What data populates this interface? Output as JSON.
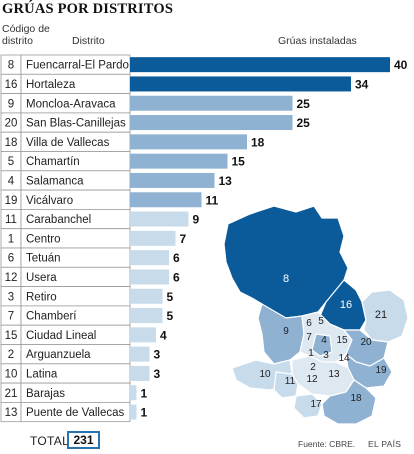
{
  "title": "GRÚAS POR DISTRITOS",
  "headers": {
    "code": "Código de distrito",
    "district": "Distrito",
    "bars": "Grúas instaladas"
  },
  "colors": {
    "dark": "#0b5b9a",
    "mid": "#8fb2d2",
    "light": "#c7dbeb",
    "map_other": "#dde8f1",
    "total_border": "#2a73ad"
  },
  "chart_data": {
    "type": "bar",
    "orientation": "horizontal",
    "xlabel": "Grúas instaladas",
    "xlim": [
      0,
      40
    ],
    "grid": false,
    "rows": [
      {
        "code": "8",
        "district": "Fuencarral-El Pardo",
        "value": 40,
        "shade": "dark"
      },
      {
        "code": "16",
        "district": "Hortaleza",
        "value": 34,
        "shade": "dark"
      },
      {
        "code": "9",
        "district": "Moncloa-Aravaca",
        "value": 25,
        "shade": "mid"
      },
      {
        "code": "20",
        "district": "San Blas-Canillejas",
        "value": 25,
        "shade": "mid"
      },
      {
        "code": "18",
        "district": "Villa de Vallecas",
        "value": 18,
        "shade": "mid"
      },
      {
        "code": "5",
        "district": "Chamartín",
        "value": 15,
        "shade": "mid"
      },
      {
        "code": "4",
        "district": "Salamanca",
        "value": 13,
        "shade": "mid"
      },
      {
        "code": "19",
        "district": "Vicálvaro",
        "value": 11,
        "shade": "mid"
      },
      {
        "code": "11",
        "district": "Carabanchel",
        "value": 9,
        "shade": "light"
      },
      {
        "code": "1",
        "district": "Centro",
        "value": 7,
        "shade": "light"
      },
      {
        "code": "6",
        "district": "Tetuán",
        "value": 6,
        "shade": "light"
      },
      {
        "code": "12",
        "district": "Usera",
        "value": 6,
        "shade": "light"
      },
      {
        "code": "3",
        "district": "Retiro",
        "value": 5,
        "shade": "light"
      },
      {
        "code": "7",
        "district": "Chamberí",
        "value": 5,
        "shade": "light"
      },
      {
        "code": "15",
        "district": "Ciudad Lineal",
        "value": 4,
        "shade": "light"
      },
      {
        "code": "2",
        "district": "Arguanzuela",
        "value": 3,
        "shade": "light"
      },
      {
        "code": "10",
        "district": "Latina",
        "value": 3,
        "shade": "light"
      },
      {
        "code": "21",
        "district": "Barajas",
        "value": 1,
        "shade": "light"
      },
      {
        "code": "13",
        "district": "Puente de Vallecas",
        "value": 1,
        "shade": "light"
      }
    ]
  },
  "map_labels": [
    "8",
    "16",
    "21",
    "9",
    "6",
    "5",
    "7",
    "4",
    "1",
    "15",
    "20",
    "3",
    "14",
    "2",
    "10",
    "11",
    "12",
    "13",
    "19",
    "17",
    "18"
  ],
  "total": {
    "label": "TOTAL",
    "value": "231"
  },
  "source": "Fuente: CBRE.",
  "brand": "EL PAÍS"
}
